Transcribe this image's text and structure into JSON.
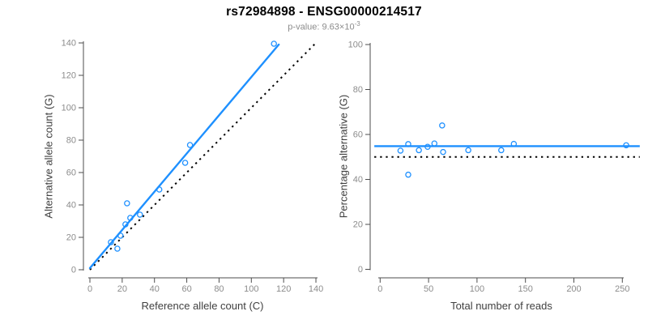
{
  "header": {
    "title": "rs72984898 - ENSG00000214517",
    "pvalue_base": "p-value: 9.63×10",
    "pvalue_exponent": "-3"
  },
  "colors": {
    "accent_blue": "#1E90FF",
    "dotted_black": "#000000",
    "axis": "#4d4d4d",
    "tick_text": "#8c8c8c"
  },
  "chart_data": [
    {
      "type": "scatter",
      "name": "allele-counts-scatter",
      "xlabel": "Reference allele count (C)",
      "ylabel": "Alternative allele count (G)",
      "xlim": [
        0,
        140
      ],
      "ylim": [
        0,
        140
      ],
      "xticks": [
        0,
        20,
        40,
        60,
        80,
        100,
        120,
        140
      ],
      "yticks": [
        0,
        20,
        40,
        60,
        80,
        100,
        120,
        140
      ],
      "grid": false,
      "points": [
        [
          13,
          17
        ],
        [
          17,
          13
        ],
        [
          19,
          21
        ],
        [
          22,
          28
        ],
        [
          23,
          41
        ],
        [
          25,
          32
        ],
        [
          31,
          34
        ],
        [
          43,
          49.5
        ],
        [
          59,
          66
        ],
        [
          62,
          77
        ],
        [
          114,
          139.5
        ]
      ],
      "fit_line": {
        "x1": 0,
        "y1": 1,
        "x2": 117,
        "y2": 139
      },
      "identity_line": {
        "x1": 0,
        "y1": 0,
        "x2": 140,
        "y2": 140,
        "style": "dotted"
      }
    },
    {
      "type": "scatter",
      "name": "percentage-alternative-scatter",
      "xlabel": "Total number of reads",
      "ylabel": "Percentage alternative (G)",
      "xlim": [
        0,
        250
      ],
      "ylim": [
        0,
        100
      ],
      "xticks": [
        0,
        50,
        100,
        150,
        200,
        250
      ],
      "yticks": [
        0,
        20,
        40,
        60,
        80,
        100
      ],
      "grid": false,
      "points": [
        [
          21,
          52.8
        ],
        [
          29,
          55.7
        ],
        [
          29,
          42.1
        ],
        [
          40,
          53
        ],
        [
          49,
          54.5
        ],
        [
          56,
          56
        ],
        [
          64,
          64
        ],
        [
          65,
          52.2
        ],
        [
          91,
          53
        ],
        [
          125,
          53
        ],
        [
          138,
          55.8
        ],
        [
          254,
          55.2
        ]
      ],
      "mean_line": {
        "value": 54.8
      },
      "null_line": {
        "value": 50,
        "style": "dotted"
      }
    }
  ]
}
